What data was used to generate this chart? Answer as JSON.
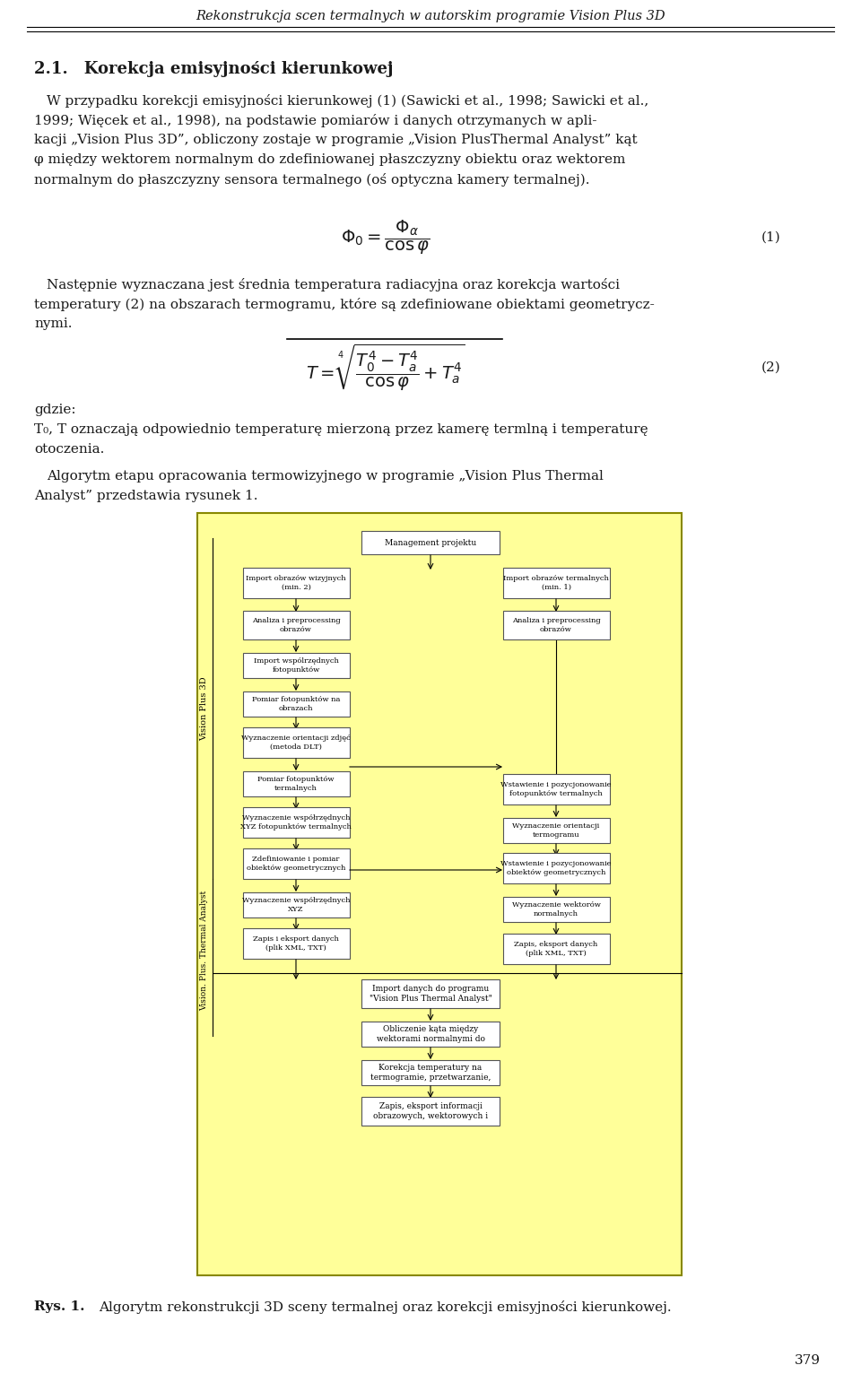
{
  "page_title": "Rekonstrukcja scen termalnych w autorskim programie Vision Plus 3D",
  "section_title": "2.1. Korekcja emisyjności kierunkowej",
  "para1": "W przypadku korekcji emisyjności kierunkowej (1) (Sawicki et al., 1998; Sawicki et al., 1999; Więcek et al., 1998), na podstawie pomiarów i danych otrzymanych w apli-kacji „Vision Plus 3D”, obliczony zostaje w programie „Vision PlusThermal Analyst” kąt φ między wektorem normalnym do zdefiniowanej płaszczyzny obiektu oraz wektorem normalnym do płaszczyzny sensora termalnego (oś optyczna kamery termalnej).",
  "eq1": "Φ₀ = Φα / cosφ",
  "eq1_label": "(1)",
  "para2": "Następnie wyznaczana jest średnia temperatura radiacyjna oraz korekcja wartości temperatury (2) na obszarach termogramu, które są zdefiniowane obiektami geometrycz-nymi.",
  "eq2_label": "(2)",
  "para3_where": "gdzie:",
  "para3_T": "T₀, T⁡ oznaczają odpowiednio temperaturę mierzoną przez kamerę termlną i temperaturę otoczenia.",
  "para4": "Algorytm etapu opracowania termowizyjnego w programie „Vision Plus Thermal Analyst” przedstawia rysunek 1.",
  "fig_caption": "Rys. 1. Algorytm rekonstrukcji 3D sceny termalnej oraz korekcji emisyjności kierunkowej.",
  "bg_color": "#ffffff",
  "text_color": "#1a1a1a",
  "flowchart_bg": "#ffff99",
  "flowchart_border": "#c8c800",
  "box_bg": "#ffffff",
  "box_border": "#555555"
}
